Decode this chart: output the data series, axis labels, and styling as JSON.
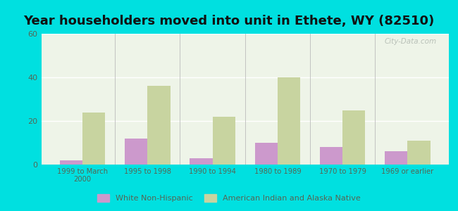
{
  "title": "Year householders moved into unit in Ethete, WY (82510)",
  "categories": [
    "1999 to March\n2000",
    "1995 to 1998",
    "1990 to 1994",
    "1980 to 1989",
    "1970 to 1979",
    "1969 or earlier"
  ],
  "white_non_hispanic": [
    2,
    12,
    3,
    10,
    8,
    6
  ],
  "american_indian": [
    24,
    36,
    22,
    40,
    25,
    11
  ],
  "white_color": "#cc99cc",
  "indian_color": "#c8d4a0",
  "background_outer": "#00e0e0",
  "background_inner": "#eef4e8",
  "ylim": [
    0,
    60
  ],
  "yticks": [
    0,
    20,
    40,
    60
  ],
  "bar_width": 0.35,
  "title_fontsize": 13,
  "tick_color": "#556655",
  "legend_label_white": "White Non-Hispanic",
  "legend_label_indian": "American Indian and Alaska Native",
  "watermark": "City-Data.com"
}
